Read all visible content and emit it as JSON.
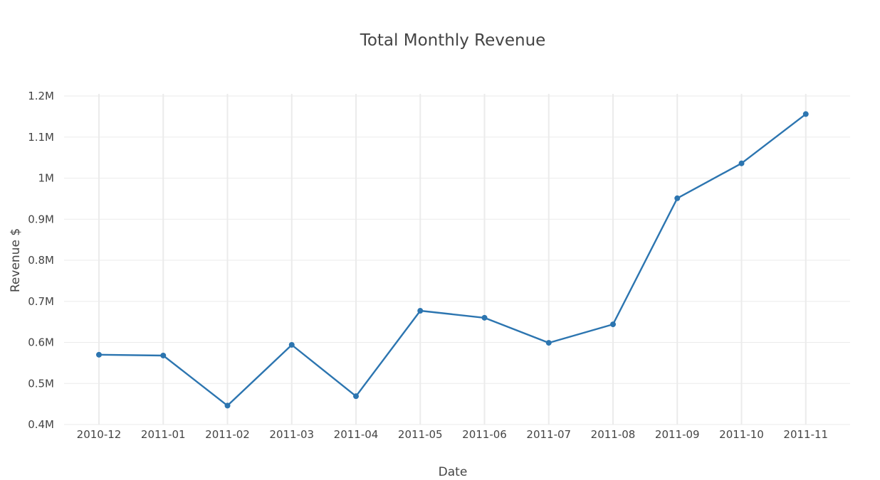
{
  "chart_data": {
    "type": "line",
    "title": "Total Monthly Revenue",
    "xlabel": "Date",
    "ylabel": "Revenue $",
    "categories": [
      "2010-12",
      "2011-01",
      "2011-02",
      "2011-03",
      "2011-04",
      "2011-05",
      "2011-06",
      "2011-07",
      "2011-08",
      "2011-09",
      "2011-10",
      "2011-11"
    ],
    "series": [
      {
        "values": [
          570000,
          568000,
          446000,
          594000,
          469000,
          677000,
          660000,
          599000,
          644000,
          951000,
          1036000,
          1156000
        ],
        "color": "#2c75b0",
        "markers": true
      }
    ],
    "ylim": [
      400000,
      1200000
    ],
    "yticks": [
      400000,
      500000,
      600000,
      700000,
      800000,
      900000,
      1000000,
      1100000,
      1200000
    ],
    "ytick_labels": [
      "0.4M",
      "0.5M",
      "0.6M",
      "0.7M",
      "0.8M",
      "0.9M",
      "1M",
      "1.1M",
      "1.2M"
    ],
    "grid": true,
    "legend": "none"
  }
}
